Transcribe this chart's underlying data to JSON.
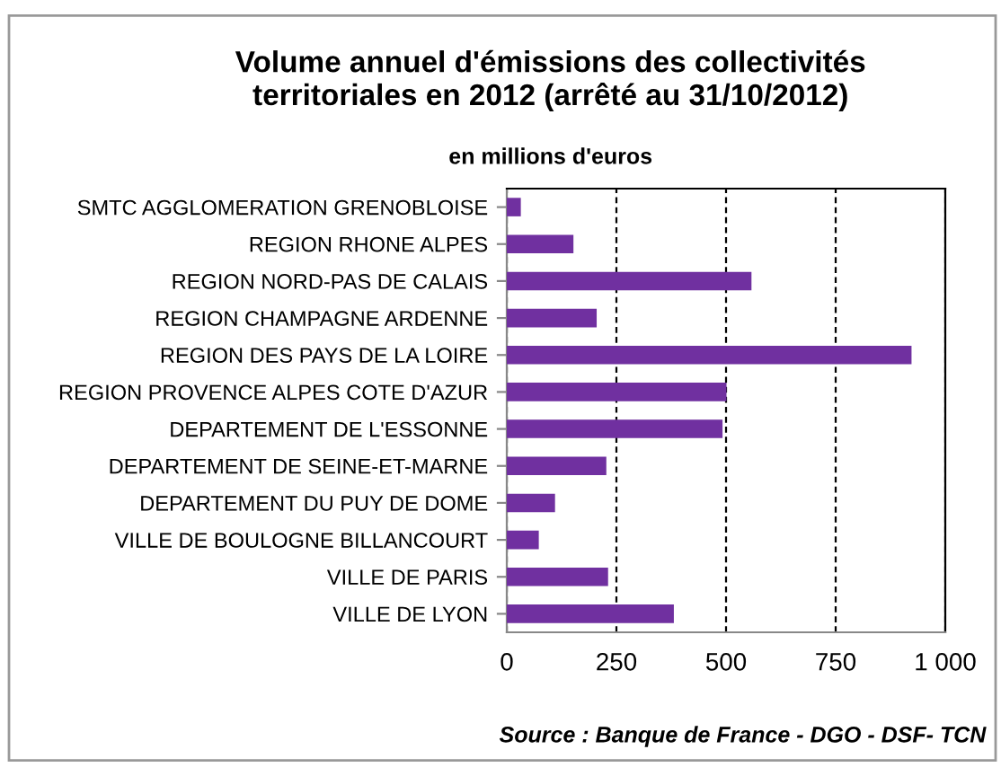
{
  "chart_data": {
    "type": "bar",
    "orientation": "horizontal",
    "title": "Volume annuel d'émissions des collectivités\nterritoriales en 2012 (arrêté au 31/10/2012)",
    "subtitle": "en millions d'euros",
    "categories": [
      "SMTC AGGLOMERATION GRENOBLOISE",
      "REGION RHONE ALPES",
      "REGION NORD-PAS DE CALAIS",
      "REGION CHAMPAGNE ARDENNE",
      "REGION DES PAYS DE LA LOIRE",
      "REGION PROVENCE ALPES COTE D'AZUR",
      "DEPARTEMENT DE L'ESSONNE",
      "DEPARTEMENT DE SEINE-ET-MARNE",
      "DEPARTEMENT DU PUY DE DOME",
      "VILLE DE BOULOGNE BILLANCOURT",
      "VILLE DE PARIS",
      "VILLE DE LYON"
    ],
    "values": [
      32,
      152,
      558,
      205,
      923,
      501,
      492,
      227,
      110,
      73,
      231,
      381
    ],
    "color": "#7030a0",
    "xlim": [
      0,
      1000
    ],
    "xticks": [
      0,
      250,
      500,
      750,
      {
        "value": 1000,
        "label": "1 000"
      }
    ],
    "grid": "x",
    "annotations": [
      "Source : Banque de France - DGO - DSF- TCN"
    ]
  }
}
